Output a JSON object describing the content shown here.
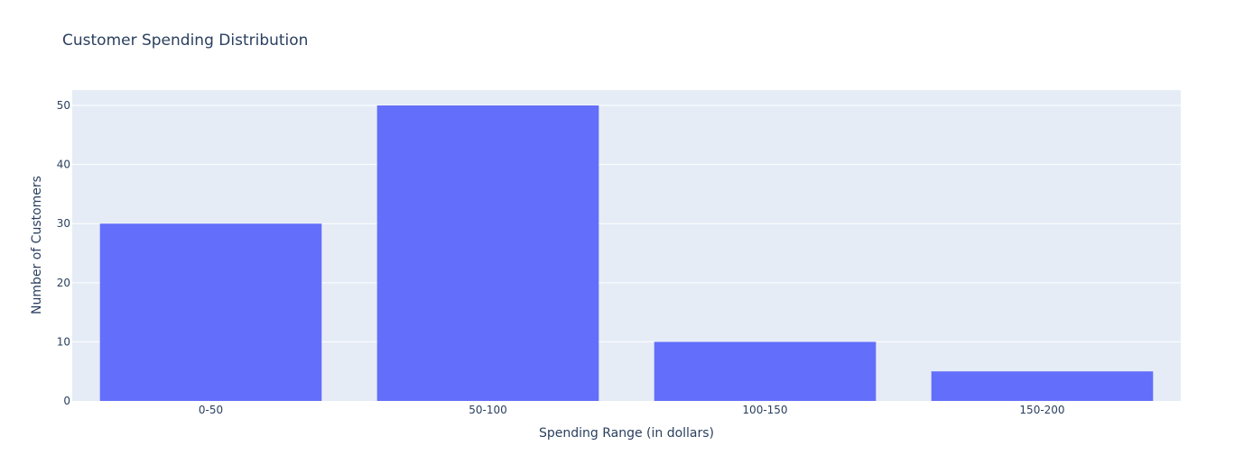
{
  "chart_data": {
    "type": "bar",
    "title": "Customer Spending Distribution",
    "xlabel": "Spending Range (in dollars)",
    "ylabel": "Number of Customers",
    "categories": [
      "0-50",
      "50-100",
      "100-150",
      "150-200"
    ],
    "values": [
      30,
      50,
      10,
      5
    ],
    "ylim": [
      0,
      52.6
    ],
    "yticks": [
      0,
      10,
      20,
      30,
      40,
      50
    ],
    "grid": true,
    "legend": "none",
    "colors": {
      "bar": "#636efa",
      "plot_background": "#e5ecf6",
      "grid": "#ffffff",
      "text": "#2a3f5f"
    }
  }
}
